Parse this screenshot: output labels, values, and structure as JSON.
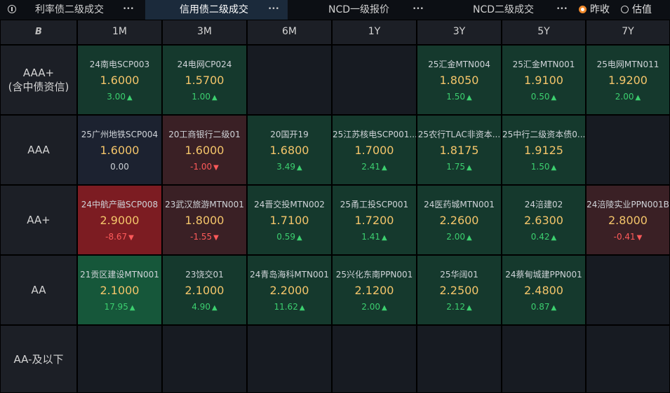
{
  "tabs": [
    {
      "label": "利率债二级成交",
      "active": false
    },
    {
      "label": "信用债二级成交",
      "active": true
    },
    {
      "label": "NCD一级报价",
      "active": false
    },
    {
      "label": "NCD二级成交",
      "active": false
    }
  ],
  "more_glyph": "•••",
  "radios": [
    {
      "label": "昨收",
      "checked": true
    },
    {
      "label": "估值",
      "checked": false
    }
  ],
  "corner_glyph": "B",
  "columns": [
    "1M",
    "3M",
    "6M",
    "1Y",
    "3Y",
    "5Y",
    "7Y"
  ],
  "rows": [
    {
      "label_lines": [
        "AAA+",
        "(含中债资信)"
      ],
      "cells": [
        {
          "bond": "24南电SCP003",
          "rate": "1.6000",
          "change": "3.00",
          "dir": "up",
          "tone": "up"
        },
        {
          "bond": "24电网CP024",
          "rate": "1.5700",
          "change": "1.00",
          "dir": "up",
          "tone": "up"
        },
        null,
        null,
        {
          "bond": "25汇金MTN004",
          "rate": "1.8050",
          "change": "1.50",
          "dir": "up",
          "tone": "up"
        },
        {
          "bond": "25汇金MTN001",
          "rate": "1.9100",
          "change": "0.50",
          "dir": "up",
          "tone": "up"
        },
        {
          "bond": "25电网MTN011",
          "rate": "1.9200",
          "change": "2.00",
          "dir": "up",
          "tone": "up"
        }
      ]
    },
    {
      "label_lines": [
        "AAA"
      ],
      "cells": [
        {
          "bond": "25广州地铁SCP004",
          "rate": "1.6000",
          "change": "0.00",
          "dir": "flat",
          "tone": "flat"
        },
        {
          "bond": "20工商银行二级01",
          "rate": "1.6000",
          "change": "-1.00",
          "dir": "down",
          "tone": "down"
        },
        {
          "bond": "20国开19",
          "rate": "1.6800",
          "change": "3.49",
          "dir": "up",
          "tone": "up"
        },
        {
          "bond": "25江苏核电SCP001...",
          "rate": "1.7000",
          "change": "2.41",
          "dir": "up",
          "tone": "up"
        },
        {
          "bond": "25农行TLAC非资本...",
          "rate": "1.8175",
          "change": "1.75",
          "dir": "up",
          "tone": "up"
        },
        {
          "bond": "25中行二级资本债0...",
          "rate": "1.9125",
          "change": "1.50",
          "dir": "up",
          "tone": "up"
        },
        null
      ]
    },
    {
      "label_lines": [
        "AA+"
      ],
      "cells": [
        {
          "bond": "24中航产融SCP008",
          "rate": "2.9000",
          "change": "-8.67",
          "dir": "down",
          "tone": "down-strong"
        },
        {
          "bond": "23武汉旅游MTN001",
          "rate": "1.8000",
          "change": "-1.55",
          "dir": "down",
          "tone": "down"
        },
        {
          "bond": "24晋交投MTN002",
          "rate": "1.7100",
          "change": "0.59",
          "dir": "up",
          "tone": "up"
        },
        {
          "bond": "25甬工投SCP001",
          "rate": "1.7200",
          "change": "1.41",
          "dir": "up",
          "tone": "up"
        },
        {
          "bond": "24医药城MTN001",
          "rate": "2.2600",
          "change": "2.00",
          "dir": "up",
          "tone": "up"
        },
        {
          "bond": "24涪建02",
          "rate": "2.6300",
          "change": "0.42",
          "dir": "up",
          "tone": "up"
        },
        {
          "bond": "24涪陵实业PPN001B",
          "rate": "2.8000",
          "change": "-0.41",
          "dir": "down",
          "tone": "down"
        }
      ]
    },
    {
      "label_lines": [
        "AA"
      ],
      "cells": [
        {
          "bond": "21贡区建设MTN001",
          "rate": "2.1000",
          "change": "17.95",
          "dir": "up",
          "tone": "up-strong"
        },
        {
          "bond": "23饶交01",
          "rate": "2.1000",
          "change": "4.90",
          "dir": "up",
          "tone": "up"
        },
        {
          "bond": "24青岛海科MTN001",
          "rate": "2.2000",
          "change": "11.62",
          "dir": "up",
          "tone": "up"
        },
        {
          "bond": "25兴化东南PPN001",
          "rate": "2.1200",
          "change": "2.00",
          "dir": "up",
          "tone": "up"
        },
        {
          "bond": "25华阔01",
          "rate": "2.2500",
          "change": "2.12",
          "dir": "up",
          "tone": "up"
        },
        {
          "bond": "24蔡甸城建PPN001",
          "rate": "2.4800",
          "change": "0.87",
          "dir": "up",
          "tone": "up"
        },
        null
      ]
    },
    {
      "label_lines": [
        "AA-及以下"
      ],
      "cells": [
        null,
        null,
        null,
        null,
        null,
        null,
        null
      ]
    }
  ],
  "arrows": {
    "up": "▲",
    "down": "▼"
  }
}
